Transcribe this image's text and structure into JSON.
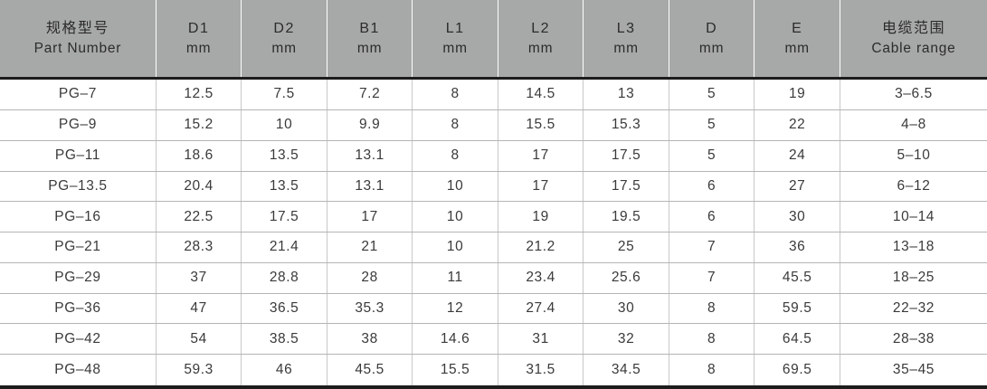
{
  "table": {
    "headers": [
      {
        "key": "part-number",
        "line1": "规格型号",
        "line2": "Part Number"
      },
      {
        "key": "d1",
        "line1": "D1",
        "line2": "mm"
      },
      {
        "key": "d2",
        "line1": "D2",
        "line2": "mm"
      },
      {
        "key": "b1",
        "line1": "B1",
        "line2": "mm"
      },
      {
        "key": "l1",
        "line1": "L1",
        "line2": "mm"
      },
      {
        "key": "l2",
        "line1": "L2",
        "line2": "mm"
      },
      {
        "key": "l3",
        "line1": "L3",
        "line2": "mm"
      },
      {
        "key": "d",
        "line1": "D",
        "line2": "mm"
      },
      {
        "key": "e",
        "line1": "E",
        "line2": "mm"
      },
      {
        "key": "cable-range",
        "line1": "电缆范围",
        "line2": "Cable range"
      }
    ],
    "rows": [
      [
        "PG–7",
        "12.5",
        "7.5",
        "7.2",
        "8",
        "14.5",
        "13",
        "5",
        "19",
        "3–6.5"
      ],
      [
        "PG–9",
        "15.2",
        "10",
        "9.9",
        "8",
        "15.5",
        "15.3",
        "5",
        "22",
        "4–8"
      ],
      [
        "PG–11",
        "18.6",
        "13.5",
        "13.1",
        "8",
        "17",
        "17.5",
        "5",
        "24",
        "5–10"
      ],
      [
        "PG–13.5",
        "20.4",
        "13.5",
        "13.1",
        "10",
        "17",
        "17.5",
        "6",
        "27",
        "6–12"
      ],
      [
        "PG–16",
        "22.5",
        "17.5",
        "17",
        "10",
        "19",
        "19.5",
        "6",
        "30",
        "10–14"
      ],
      [
        "PG–21",
        "28.3",
        "21.4",
        "21",
        "10",
        "21.2",
        "25",
        "7",
        "36",
        "13–18"
      ],
      [
        "PG–29",
        "37",
        "28.8",
        "28",
        "11",
        "23.4",
        "25.6",
        "7",
        "45.5",
        "18–25"
      ],
      [
        "PG–36",
        "47",
        "36.5",
        "35.3",
        "12",
        "27.4",
        "30",
        "8",
        "59.5",
        "22–32"
      ],
      [
        "PG–42",
        "54",
        "38.5",
        "38",
        "14.6",
        "31",
        "32",
        "8",
        "64.5",
        "28–38"
      ],
      [
        "PG–48",
        "59.3",
        "46",
        "45.5",
        "15.5",
        "31.5",
        "34.5",
        "8",
        "69.5",
        "35–45"
      ]
    ]
  },
  "colors": {
    "header_bg": "#a7a9a8",
    "header_text": "#2b2b2b",
    "body_text": "#3a3a3a",
    "heavy_line": "#1c1c1c",
    "row_line": "#b3b5b4",
    "col_line": "#c6c8c7",
    "header_divider": "#fdfdfd",
    "body_bg": "#ffffff"
  }
}
